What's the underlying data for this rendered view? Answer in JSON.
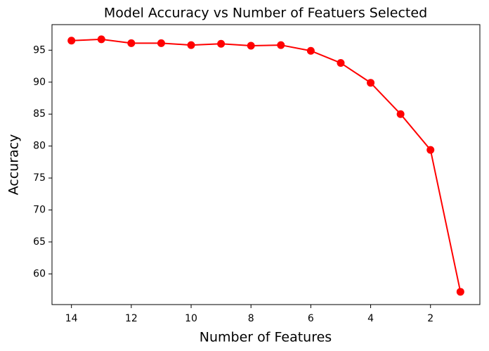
{
  "chart_data": {
    "type": "line",
    "title": "Model Accuracy vs Number of Featuers Selected",
    "x_label": "Number of Features",
    "y_label": "Accuracy",
    "x": [
      14,
      13,
      12,
      11,
      10,
      9,
      8,
      7,
      6,
      5,
      4,
      3,
      2,
      1
    ],
    "series": [
      {
        "name": "Accuracy",
        "color": "#ff0000",
        "values": [
          96.5,
          96.7,
          96.1,
          96.1,
          95.8,
          96.0,
          95.7,
          95.8,
          94.9,
          93.0,
          89.9,
          85.0,
          79.4,
          57.2
        ]
      }
    ],
    "xlim": [
      14.65,
      0.35
    ],
    "xticks": [
      14,
      12,
      10,
      8,
      6,
      4,
      2
    ],
    "ylim": [
      55.2,
      99.0
    ],
    "yticks": [
      60,
      65,
      70,
      75,
      80,
      85,
      90,
      95
    ],
    "grid": false
  }
}
